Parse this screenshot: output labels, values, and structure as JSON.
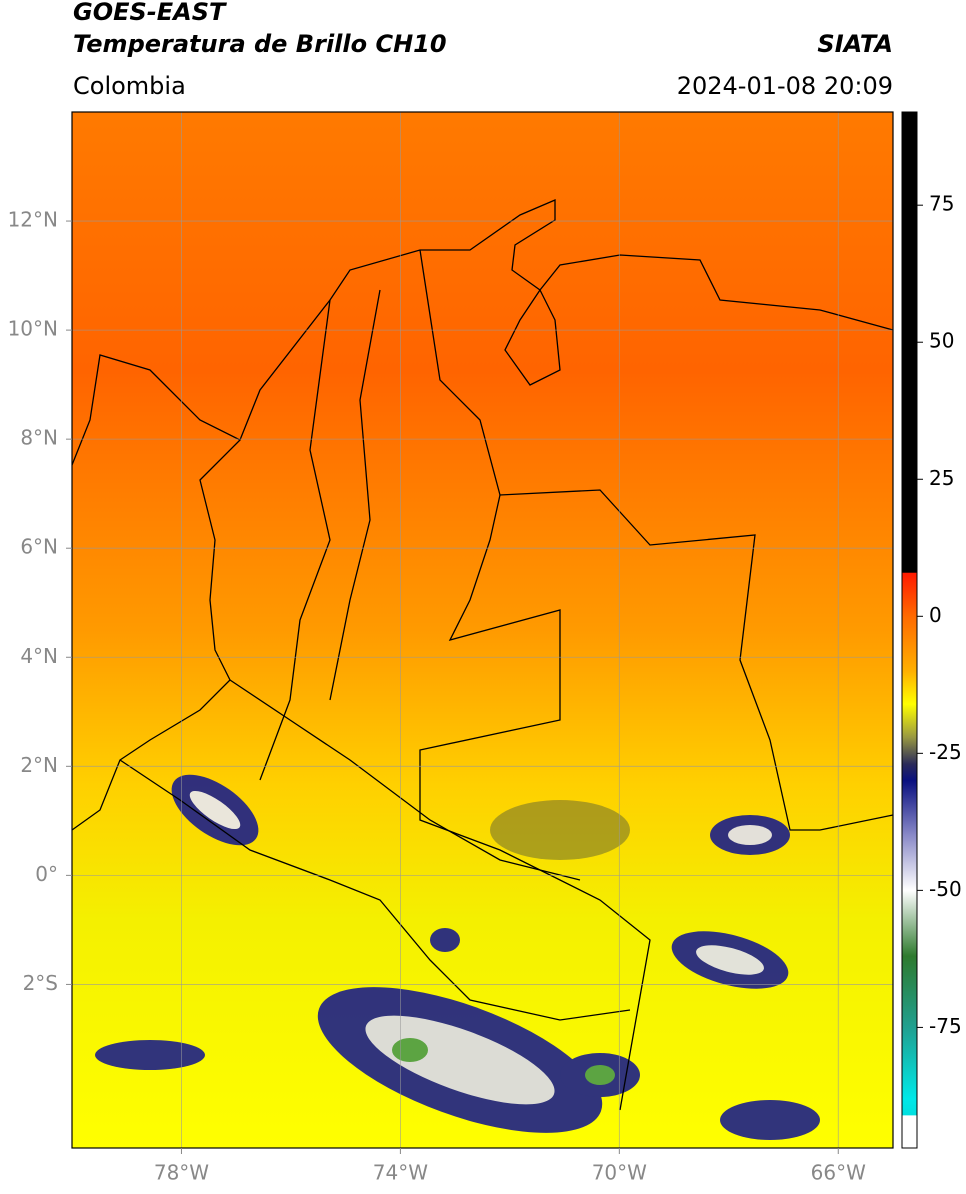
{
  "header": {
    "title": "GOES-EAST",
    "subtitle": "Temperatura de Brillo CH10",
    "source": "SIATA",
    "region": "Colombia",
    "datetime": "2024-01-08 20:09"
  },
  "map": {
    "xlim": [
      -80,
      -65
    ],
    "ylim": [
      -5,
      14
    ],
    "grid": true,
    "xticks": [
      {
        "value": -78,
        "label": "78°W"
      },
      {
        "value": -74,
        "label": "74°W"
      },
      {
        "value": -70,
        "label": "70°W"
      },
      {
        "value": -66,
        "label": "66°W"
      }
    ],
    "yticks": [
      {
        "value": 12,
        "label": "12°N"
      },
      {
        "value": 10,
        "label": "10°N"
      },
      {
        "value": 8,
        "label": "8°N"
      },
      {
        "value": 6,
        "label": "6°N"
      },
      {
        "value": 4,
        "label": "4°N"
      },
      {
        "value": 2,
        "label": "2°N"
      },
      {
        "value": 0,
        "label": "0°"
      },
      {
        "value": -2,
        "label": "2°S"
      }
    ]
  },
  "colorbar": {
    "ylim": [
      -97,
      92
    ],
    "yticks": [
      75,
      50,
      25,
      0,
      -25,
      -50,
      -75
    ],
    "stops": [
      {
        "value": 92,
        "color": "#000000"
      },
      {
        "value": 8,
        "color": "#000000"
      },
      {
        "value": 7.9,
        "color": "#ff1a00"
      },
      {
        "value": 0,
        "color": "#ff6a00"
      },
      {
        "value": -10,
        "color": "#ffb000"
      },
      {
        "value": -16,
        "color": "#ffff00"
      },
      {
        "value": -22,
        "color": "#9a9a40"
      },
      {
        "value": -27,
        "color": "#2a2a5a"
      },
      {
        "value": -30,
        "color": "#0a1080"
      },
      {
        "value": -40,
        "color": "#8a8ac8"
      },
      {
        "value": -50,
        "color": "#ffffff"
      },
      {
        "value": -62,
        "color": "#2e7a2e"
      },
      {
        "value": -75,
        "color": "#20a090"
      },
      {
        "value": -88,
        "color": "#00e8e8"
      },
      {
        "value": -91,
        "color": "#00e0e0"
      },
      {
        "value": -91.1,
        "color": "#ffffff"
      },
      {
        "value": -97,
        "color": "#ffffff"
      }
    ]
  }
}
